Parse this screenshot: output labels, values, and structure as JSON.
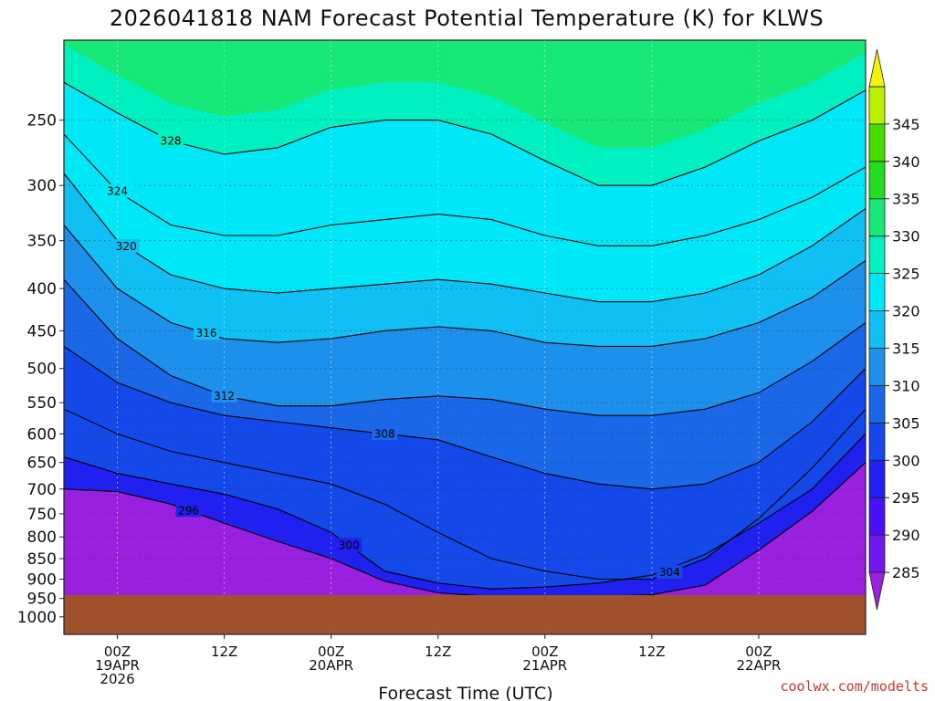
{
  "chart_data": {
    "type": "heatmap",
    "title": "2026041818 NAM Forecast Potential Temperature (K) for KLWS",
    "xlabel": "Forecast Time (UTC)",
    "ylabel": "",
    "credit": "coolwx.com/modelts",
    "y_axis": {
      "scale": "log-pressure",
      "ticks": [
        "250",
        "300",
        "350",
        "400",
        "450",
        "500",
        "550",
        "600",
        "650",
        "700",
        "750",
        "800",
        "850",
        "900",
        "950",
        "1000"
      ],
      "range_hPa": [
        1050,
        200
      ]
    },
    "x_axis": {
      "range_hours": [
        -6,
        84
      ],
      "ticks": [
        {
          "hours": 0,
          "line1": "00Z",
          "line2": "19APR",
          "line3": "2026"
        },
        {
          "hours": 12,
          "line1": "12Z",
          "line2": "",
          "line3": ""
        },
        {
          "hours": 24,
          "line1": "00Z",
          "line2": "20APR",
          "line3": ""
        },
        {
          "hours": 36,
          "line1": "12Z",
          "line2": "",
          "line3": ""
        },
        {
          "hours": 48,
          "line1": "00Z",
          "line2": "21APR",
          "line3": ""
        },
        {
          "hours": 60,
          "line1": "12Z",
          "line2": "",
          "line3": ""
        },
        {
          "hours": 72,
          "line1": "00Z",
          "line2": "22APR",
          "line3": ""
        }
      ]
    },
    "colorbar": {
      "levels": [
        "285",
        "290",
        "295",
        "300",
        "305",
        "310",
        "315",
        "320",
        "325",
        "330",
        "335",
        "340",
        "345"
      ],
      "colors": [
        "#9a20e0",
        "#7018ee",
        "#4a10f4",
        "#2020f0",
        "#1448e8",
        "#1a68e8",
        "#1c90ea",
        "#10bff4",
        "#00e8f8",
        "#00f0c0",
        "#18e878",
        "#22dc22",
        "#44dd00",
        "#bbf000",
        "#f4f400"
      ],
      "ground_color": "#a0522d"
    },
    "times_hours": [
      -6,
      0,
      6,
      12,
      18,
      24,
      30,
      36,
      42,
      48,
      54,
      60,
      66,
      72,
      78,
      84
    ],
    "isentropes": [
      {
        "theta": 296,
        "label": "296",
        "label_hour": 8,
        "pressures": [
          700,
          705,
          730,
          770,
          810,
          850,
          905,
          935,
          945,
          945,
          945,
          940,
          915,
          830,
          745,
          650
        ]
      },
      {
        "theta": 300,
        "label": "300",
        "label_hour": 26,
        "pressures": [
          640,
          670,
          690,
          710,
          740,
          790,
          880,
          910,
          925,
          920,
          910,
          890,
          840,
          770,
          700,
          600
        ]
      },
      {
        "theta": 304,
        "label": "304",
        "label_hour": 62,
        "pressures": [
          560,
          600,
          630,
          650,
          670,
          690,
          730,
          790,
          850,
          880,
          900,
          900,
          850,
          760,
          660,
          560
        ]
      },
      {
        "theta": 308,
        "label": "308",
        "label_hour": 30,
        "pressures": [
          470,
          520,
          550,
          570,
          580,
          590,
          600,
          610,
          640,
          670,
          690,
          700,
          690,
          650,
          580,
          500
        ]
      },
      {
        "theta": 312,
        "label": "312",
        "label_hour": 12,
        "pressures": [
          390,
          460,
          510,
          540,
          555,
          555,
          545,
          540,
          545,
          560,
          570,
          570,
          560,
          535,
          490,
          440
        ]
      },
      {
        "theta": 316,
        "label": "316",
        "label_hour": 10,
        "pressures": [
          335,
          400,
          440,
          460,
          465,
          460,
          450,
          445,
          450,
          465,
          470,
          470,
          460,
          440,
          410,
          370
        ]
      },
      {
        "theta": 320,
        "label": "320",
        "label_hour": 1,
        "pressures": [
          290,
          350,
          385,
          400,
          405,
          400,
          395,
          390,
          395,
          405,
          415,
          415,
          405,
          385,
          355,
          320
        ]
      },
      {
        "theta": 324,
        "label": "324",
        "label_hour": 0,
        "pressures": [
          260,
          305,
          335,
          345,
          345,
          335,
          330,
          325,
          330,
          345,
          355,
          355,
          345,
          330,
          310,
          285
        ]
      },
      {
        "theta": 328,
        "label": "328",
        "label_hour": 6,
        "pressures": [
          225,
          245,
          265,
          275,
          270,
          255,
          250,
          250,
          260,
          280,
          300,
          300,
          285,
          265,
          250,
          230
        ]
      }
    ]
  }
}
